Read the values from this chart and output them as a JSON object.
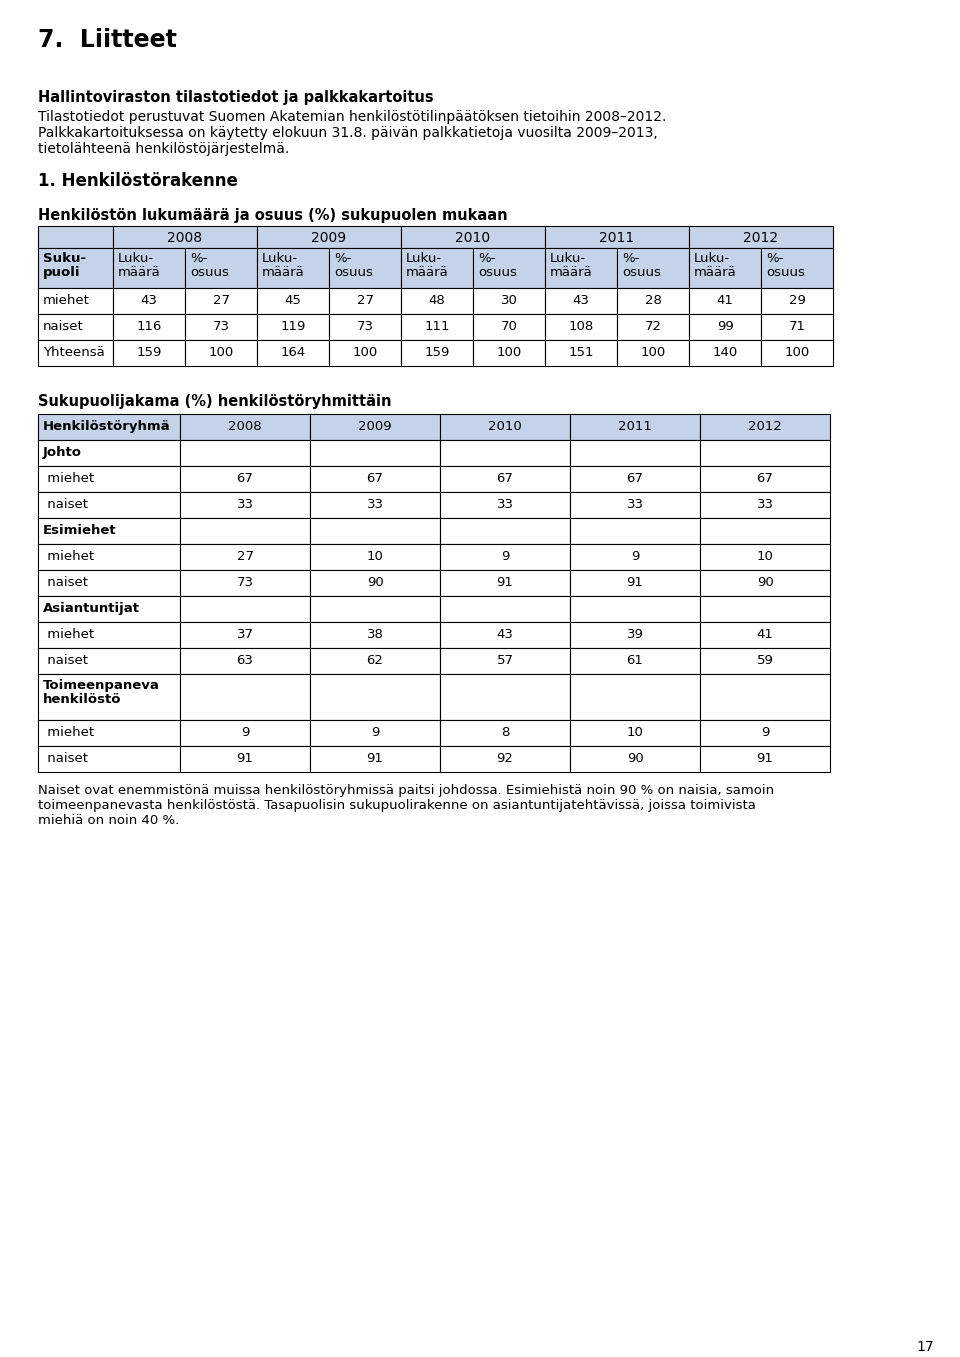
{
  "page_title": "7.  Liitteet",
  "section_title_bold": "Hallintoviraston tilastotiedot ja palkkakartoitus",
  "section_body_line1": "Tilastotiedot perustuvat Suomen Akatemian henkilöstötilinpäätöksen tietoihin 2008–2012.",
  "section_body_line2": "Palkkakartoituksessa on käytetty elokuun 31.8. päivän palkkatietoja vuosilta 2009–2013,",
  "section_body_line3": "tietolähteenä henkilöstöjärjestelmä.",
  "subsection_title": "1. Henkilöstörakenne",
  "table1_title": "Henkilöstön lukumäärä ja osuus (%) sukupuolen mukaan",
  "table1_year_headers": [
    "2008",
    "2009",
    "2010",
    "2011",
    "2012"
  ],
  "table1_subheader_luku": "Luku-\nmäärä",
  "table1_subheader_pct": "%-\nosuus",
  "table1_col0_header_line1": "Suku-",
  "table1_col0_header_line2": "puoli",
  "table1_rows": [
    [
      "miehet",
      "43",
      "27",
      "45",
      "27",
      "48",
      "30",
      "43",
      "28",
      "41",
      "29"
    ],
    [
      "naiset",
      "116",
      "73",
      "119",
      "73",
      "111",
      "70",
      "108",
      "72",
      "99",
      "71"
    ],
    [
      "Yhteensä",
      "159",
      "100",
      "164",
      "100",
      "159",
      "100",
      "151",
      "100",
      "140",
      "100"
    ]
  ],
  "table2_title": "Sukupuolijakama (%) henkilöstöryhmittäin",
  "table2_headers": [
    "Henkilöstöryhmä",
    "2008",
    "2009",
    "2010",
    "2011",
    "2012"
  ],
  "table2_rows": [
    [
      "Johto",
      "",
      "",
      "",
      "",
      "",
      "bold"
    ],
    [
      " miehet",
      "67",
      "67",
      "67",
      "67",
      "67",
      "normal"
    ],
    [
      " naiset",
      "33",
      "33",
      "33",
      "33",
      "33",
      "normal"
    ],
    [
      "Esimiehet",
      "",
      "",
      "",
      "",
      "",
      "bold"
    ],
    [
      " miehet",
      "27",
      "10",
      "9",
      "9",
      "10",
      "normal"
    ],
    [
      " naiset",
      "73",
      "90",
      "91",
      "91",
      "90",
      "normal"
    ],
    [
      "Asiantuntijat",
      "",
      "",
      "",
      "",
      "",
      "bold"
    ],
    [
      " miehet",
      "37",
      "38",
      "43",
      "39",
      "41",
      "normal"
    ],
    [
      " naiset",
      "63",
      "62",
      "57",
      "61",
      "59",
      "normal"
    ],
    [
      "Toimeenpaneva\nhenkilöstö",
      "",
      "",
      "",
      "",
      "",
      "bold"
    ],
    [
      " miehet",
      "9",
      "9",
      "8",
      "10",
      "9",
      "normal"
    ],
    [
      " naiset",
      "91",
      "91",
      "92",
      "90",
      "91",
      "normal"
    ]
  ],
  "footer_line1": "Naiset ovat enemmistönä muissa henkilöstöryhmissä paitsi johdossa. Esimiehistä noin 90 % on naisia, samoin",
  "footer_line2": "toimeenpanevasta henkilöstöstä. Tasapuolisin sukupuolirakenne on asiantuntijatehtävissä, joissa toimivista",
  "footer_line3": "miehiä on noin 40 %.",
  "page_number": "17",
  "header_bg_color": "#c5d3e8",
  "border_color": "#000000",
  "white": "#ffffff"
}
